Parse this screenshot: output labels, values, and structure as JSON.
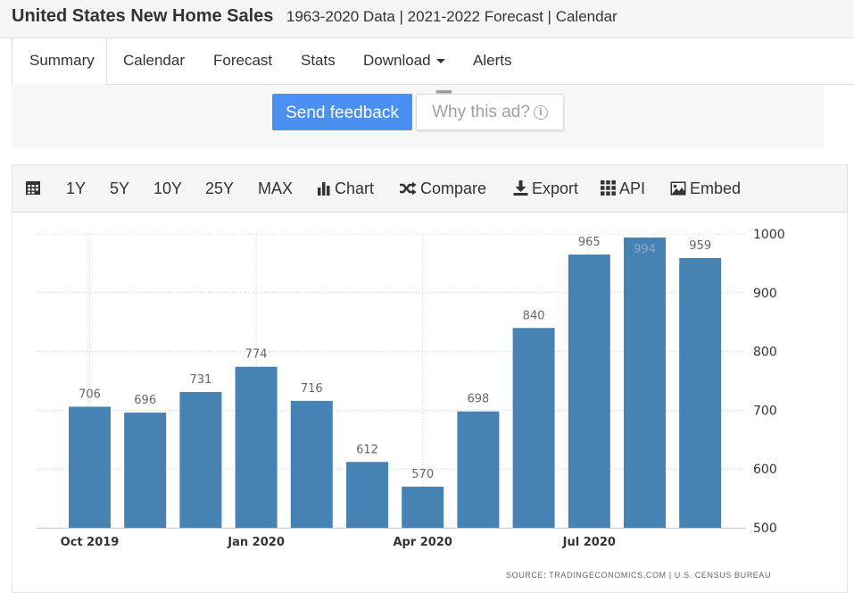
{
  "header": {
    "title": "United States New Home Sales",
    "subtitle": "1963-2020 Data | 2021-2022 Forecast | Calendar"
  },
  "tabs": [
    {
      "label": "Summary",
      "active": true
    },
    {
      "label": "Calendar"
    },
    {
      "label": "Forecast"
    },
    {
      "label": "Stats"
    },
    {
      "label": "Download"
    },
    {
      "label": "Alerts"
    }
  ],
  "ad": {
    "feedback_label": "Send feedback",
    "why_label": "Why this ad?",
    "accent": "#4a90f0"
  },
  "toolbar": {
    "calendar_icon": "calendar-icon",
    "ranges": [
      "1Y",
      "5Y",
      "10Y",
      "25Y",
      "MAX"
    ],
    "chart_label": "Chart",
    "compare_label": "Compare",
    "export_label": "Export",
    "api_label": "API",
    "embed_label": "Embed"
  },
  "chart_data": {
    "type": "bar",
    "categories": [
      "Oct 2019",
      "Nov 2019",
      "Dec 2019",
      "Jan 2020",
      "Feb 2020",
      "Mar 2020",
      "Apr 2020",
      "May 2020",
      "Jun 2020",
      "Jul 2020",
      "Aug 2020",
      "Sep 2020"
    ],
    "values": [
      706,
      696,
      731,
      774,
      716,
      612,
      570,
      698,
      840,
      965,
      994,
      959
    ],
    "x_tick_labels": [
      {
        "category": "Oct 2019",
        "label": "Oct 2019"
      },
      {
        "category": "Jan 2020",
        "label": "Jan 2020"
      },
      {
        "category": "Apr 2020",
        "label": "Apr 2020"
      },
      {
        "category": "Jul 2020",
        "label": "Jul 2020"
      }
    ],
    "y_ticks": [
      1000,
      900,
      800,
      700,
      600,
      500
    ],
    "ylim": [
      500,
      1000
    ],
    "bar_color": "#4682b4",
    "grid": true,
    "y_axis_side": "right"
  },
  "source": "SOURCE: TRADINGECONOMICS.COM | U.S. CENSUS BUREAU"
}
